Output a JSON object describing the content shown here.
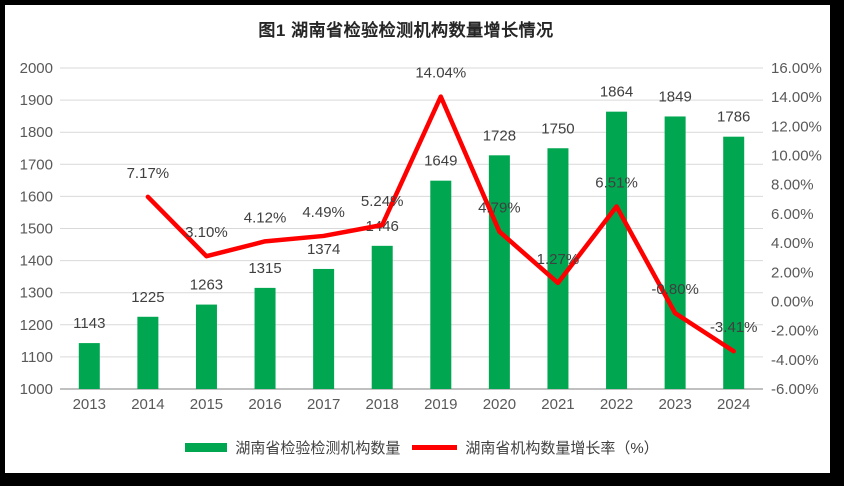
{
  "page": {
    "background": "#FFFFFF",
    "frame_color": "#000000"
  },
  "chart_data": {
    "type": "bar",
    "subtype": "bar-line-combo",
    "title": "图1 湖南省检验检测机构数量增长情况",
    "categories": [
      "2013",
      "2014",
      "2015",
      "2016",
      "2017",
      "2018",
      "2019",
      "2020",
      "2021",
      "2022",
      "2023",
      "2024"
    ],
    "series": [
      {
        "name": "湖南省检验检测机构数量",
        "chart_type": "bar",
        "axis": "left",
        "color": "#00A650",
        "values": [
          1143,
          1225,
          1263,
          1315,
          1374,
          1446,
          1649,
          1728,
          1750,
          1864,
          1849,
          1786
        ]
      },
      {
        "name": "湖南省机构数量增长率（%）",
        "chart_type": "line",
        "axis": "right",
        "color": "#FF0000",
        "values": [
          null,
          7.17,
          3.1,
          4.12,
          4.49,
          5.24,
          14.04,
          4.79,
          1.27,
          6.51,
          -0.8,
          -3.41
        ],
        "value_labels": [
          null,
          "7.17%",
          "3.10%",
          "4.12%",
          "4.49%",
          "5.24%",
          "14.04%",
          "4.79%",
          "1.27%",
          "6.51%",
          "-0.80%",
          "-3.41%"
        ]
      }
    ],
    "left_axis": {
      "min": 1000,
      "max": 2000,
      "step": 100,
      "tick_labels": [
        "2000",
        "1900",
        "1800",
        "1700",
        "1600",
        "1500",
        "1400",
        "1300",
        "1200",
        "1100",
        "1000"
      ]
    },
    "right_axis": {
      "min": -6,
      "max": 16,
      "step": 2,
      "tick_labels": [
        "16.00%",
        "14.00%",
        "12.00%",
        "10.00%",
        "8.00%",
        "6.00%",
        "4.00%",
        "2.00%",
        "0.00%",
        "-2.00%",
        "-4.00%",
        "-6.00%"
      ]
    },
    "grid": true,
    "legend_position": "bottom",
    "colors": {
      "bar_green": "#00A650",
      "line_red": "#FF0000",
      "gridline": "#D9D9D9",
      "axis_line": "#C0C0C0",
      "tick_text": "#595959",
      "label_text": "#404040",
      "title_text": "#262626"
    }
  }
}
